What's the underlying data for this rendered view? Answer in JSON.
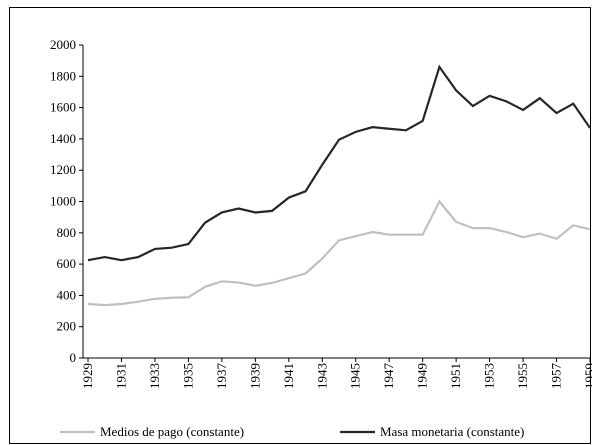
{
  "chart_data": {
    "type": "line",
    "x": [
      1929,
      1930,
      1931,
      1932,
      1933,
      1934,
      1935,
      1936,
      1937,
      1938,
      1939,
      1940,
      1941,
      1942,
      1943,
      1944,
      1945,
      1946,
      1947,
      1948,
      1949,
      1950,
      1951,
      1952,
      1953,
      1954,
      1955,
      1956,
      1957,
      1958,
      1959
    ],
    "series": [
      {
        "name": "Medios de pago (constante)",
        "color": "#c0c0c0",
        "values": [
          345,
          338,
          345,
          360,
          378,
          385,
          388,
          455,
          490,
          482,
          462,
          480,
          510,
          540,
          635,
          752,
          778,
          805,
          788,
          788,
          788,
          1000,
          870,
          830,
          830,
          805,
          772,
          795,
          762,
          848,
          822
        ]
      },
      {
        "name": "Masa monetaria (constante)",
        "color": "#262626",
        "values": [
          625,
          645,
          625,
          645,
          697,
          705,
          728,
          865,
          930,
          955,
          930,
          940,
          1025,
          1065,
          1235,
          1395,
          1445,
          1475,
          1465,
          1455,
          1515,
          1860,
          1710,
          1610,
          1675,
          1640,
          1585,
          1660,
          1565,
          1625,
          1470
        ]
      }
    ],
    "xlim": [
      1929,
      1959
    ],
    "xticks": [
      1929,
      1931,
      1933,
      1935,
      1937,
      1939,
      1941,
      1943,
      1945,
      1947,
      1949,
      1951,
      1953,
      1955,
      1957,
      1959
    ],
    "ylim": [
      0,
      2000
    ],
    "yticks": [
      0,
      200,
      400,
      600,
      800,
      1000,
      1200,
      1400,
      1600,
      1800,
      2000
    ],
    "grid": false,
    "legend": "bottom"
  }
}
